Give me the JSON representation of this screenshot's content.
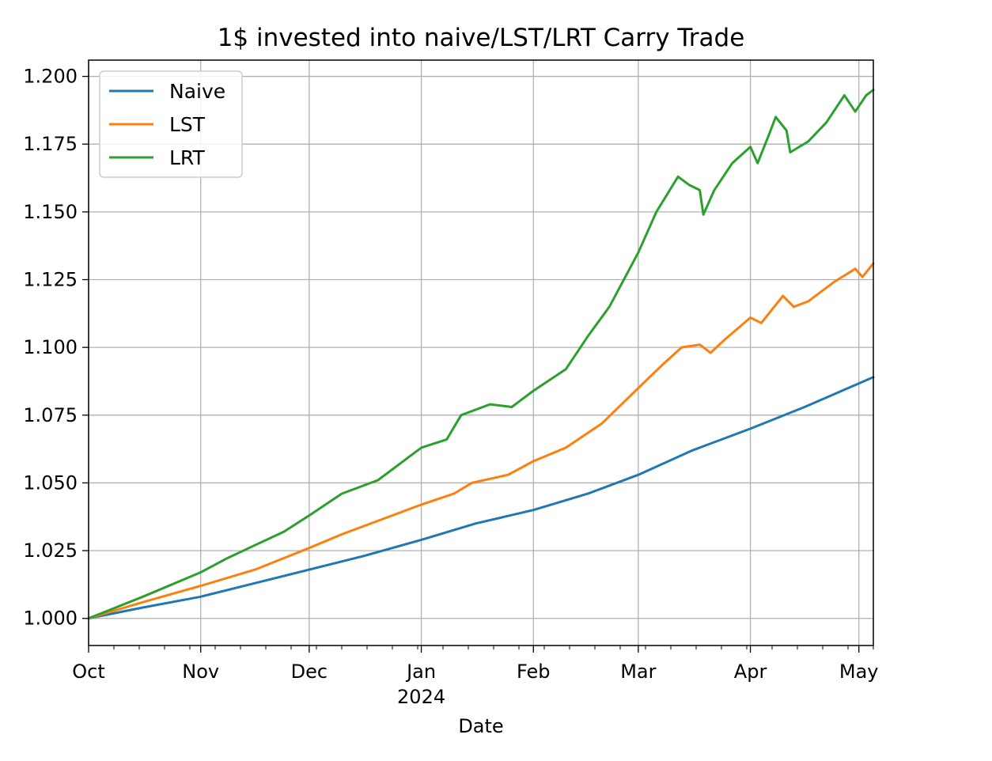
{
  "chart_data": {
    "type": "line",
    "title": "1$ invested into naive/LST/LRT Carry Trade",
    "xlabel": "Date",
    "ylabel": "",
    "x_start": "2023-10-01",
    "x_end": "2024-05-05",
    "ylim": [
      0.99,
      1.206
    ],
    "y_ticks": [
      1.0,
      1.025,
      1.05,
      1.075,
      1.1,
      1.125,
      1.15,
      1.175,
      1.2
    ],
    "y_tick_labels": [
      "1.000",
      "1.025",
      "1.050",
      "1.075",
      "1.100",
      "1.125",
      "1.150",
      "1.175",
      "1.200"
    ],
    "x_ticks": [
      {
        "date": "2023-10-01",
        "label": "Oct",
        "sublabel": ""
      },
      {
        "date": "2023-11-01",
        "label": "Nov",
        "sublabel": ""
      },
      {
        "date": "2023-12-01",
        "label": "Dec",
        "sublabel": ""
      },
      {
        "date": "2024-01-01",
        "label": "Jan",
        "sublabel": "2024"
      },
      {
        "date": "2024-02-01",
        "label": "Feb",
        "sublabel": ""
      },
      {
        "date": "2024-03-01",
        "label": "Mar",
        "sublabel": ""
      },
      {
        "date": "2024-04-01",
        "label": "Apr",
        "sublabel": ""
      },
      {
        "date": "2024-05-01",
        "label": "May",
        "sublabel": ""
      }
    ],
    "grid": true,
    "legend_position": "top-left",
    "series": [
      {
        "name": "Naive",
        "color": "#1f77b4",
        "points": [
          [
            "2023-10-01",
            1.0
          ],
          [
            "2023-10-16",
            1.004
          ],
          [
            "2023-11-01",
            1.008
          ],
          [
            "2023-11-16",
            1.013
          ],
          [
            "2023-12-01",
            1.018
          ],
          [
            "2023-12-16",
            1.023
          ],
          [
            "2024-01-01",
            1.029
          ],
          [
            "2024-01-16",
            1.035
          ],
          [
            "2024-02-01",
            1.04
          ],
          [
            "2024-02-16",
            1.046
          ],
          [
            "2024-03-01",
            1.053
          ],
          [
            "2024-03-16",
            1.062
          ],
          [
            "2024-04-01",
            1.07
          ],
          [
            "2024-04-16",
            1.078
          ],
          [
            "2024-05-05",
            1.089
          ]
        ]
      },
      {
        "name": "LST",
        "color": "#ff7f0e",
        "points": [
          [
            "2023-10-01",
            1.0
          ],
          [
            "2023-10-16",
            1.006
          ],
          [
            "2023-11-01",
            1.012
          ],
          [
            "2023-11-16",
            1.018
          ],
          [
            "2023-12-01",
            1.026
          ],
          [
            "2023-12-10",
            1.031
          ],
          [
            "2023-12-20",
            1.036
          ],
          [
            "2024-01-01",
            1.042
          ],
          [
            "2024-01-10",
            1.046
          ],
          [
            "2024-01-15",
            1.05
          ],
          [
            "2024-01-25",
            1.053
          ],
          [
            "2024-02-01",
            1.058
          ],
          [
            "2024-02-10",
            1.063
          ],
          [
            "2024-02-20",
            1.072
          ],
          [
            "2024-03-01",
            1.085
          ],
          [
            "2024-03-08",
            1.094
          ],
          [
            "2024-03-13",
            1.1
          ],
          [
            "2024-03-18",
            1.101
          ],
          [
            "2024-03-21",
            1.098
          ],
          [
            "2024-03-25",
            1.103
          ],
          [
            "2024-04-01",
            1.111
          ],
          [
            "2024-04-04",
            1.109
          ],
          [
            "2024-04-10",
            1.119
          ],
          [
            "2024-04-13",
            1.115
          ],
          [
            "2024-04-17",
            1.117
          ],
          [
            "2024-04-24",
            1.124
          ],
          [
            "2024-04-30",
            1.129
          ],
          [
            "2024-05-02",
            1.126
          ],
          [
            "2024-05-05",
            1.131
          ]
        ]
      },
      {
        "name": "LRT",
        "color": "#2ca02c",
        "points": [
          [
            "2023-10-01",
            1.0
          ],
          [
            "2023-10-16",
            1.008
          ],
          [
            "2023-11-01",
            1.017
          ],
          [
            "2023-11-08",
            1.022
          ],
          [
            "2023-11-16",
            1.027
          ],
          [
            "2023-11-24",
            1.032
          ],
          [
            "2023-12-01",
            1.038
          ],
          [
            "2023-12-10",
            1.046
          ],
          [
            "2023-12-20",
            1.051
          ],
          [
            "2023-12-28",
            1.059
          ],
          [
            "2024-01-01",
            1.063
          ],
          [
            "2024-01-08",
            1.066
          ],
          [
            "2024-01-12",
            1.075
          ],
          [
            "2024-01-20",
            1.079
          ],
          [
            "2024-01-26",
            1.078
          ],
          [
            "2024-02-01",
            1.084
          ],
          [
            "2024-02-10",
            1.092
          ],
          [
            "2024-02-16",
            1.104
          ],
          [
            "2024-02-22",
            1.115
          ],
          [
            "2024-03-01",
            1.135
          ],
          [
            "2024-03-06",
            1.15
          ],
          [
            "2024-03-12",
            1.163
          ],
          [
            "2024-03-15",
            1.16
          ],
          [
            "2024-03-18",
            1.158
          ],
          [
            "2024-03-19",
            1.149
          ],
          [
            "2024-03-22",
            1.158
          ],
          [
            "2024-03-27",
            1.168
          ],
          [
            "2024-04-01",
            1.174
          ],
          [
            "2024-04-03",
            1.168
          ],
          [
            "2024-04-06",
            1.178
          ],
          [
            "2024-04-08",
            1.185
          ],
          [
            "2024-04-11",
            1.18
          ],
          [
            "2024-04-12",
            1.172
          ],
          [
            "2024-04-17",
            1.176
          ],
          [
            "2024-04-22",
            1.183
          ],
          [
            "2024-04-27",
            1.193
          ],
          [
            "2024-04-30",
            1.187
          ],
          [
            "2024-05-03",
            1.193
          ],
          [
            "2024-05-05",
            1.195
          ]
        ]
      }
    ]
  }
}
